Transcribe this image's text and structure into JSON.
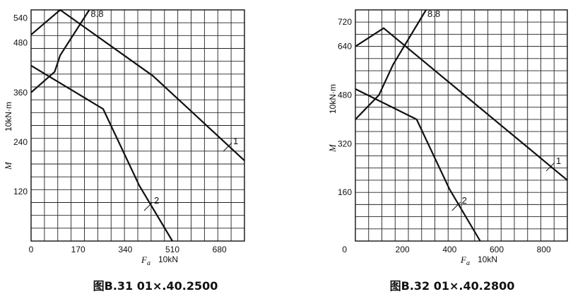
{
  "chart_data": [
    {
      "type": "line",
      "caption": "图B.31   01×.40.2500",
      "xlabel": "F",
      "xlabel_sub": "a",
      "xunit": "10kN",
      "ylabel": "M",
      "yunit": "10kN·m",
      "xlim": [
        0,
        770
      ],
      "ylim": [
        0,
        560
      ],
      "xticks": [
        0,
        170,
        340,
        510,
        680
      ],
      "yticks": [
        120,
        240,
        360,
        480,
        540
      ],
      "grid": true,
      "series": [
        {
          "name": "8.8",
          "x": [
            0,
            85,
            105,
            210
          ],
          "y": [
            360,
            410,
            450,
            560
          ]
        },
        {
          "name": "1",
          "x": [
            0,
            105,
            440,
            770
          ],
          "y": [
            500,
            560,
            400,
            195
          ]
        },
        {
          "name": "2",
          "x": [
            0,
            260,
            390,
            510
          ],
          "y": [
            425,
            320,
            135,
            0
          ]
        }
      ]
    },
    {
      "type": "line",
      "caption": "图B.32   01×.40.2800",
      "xlabel": "F",
      "xlabel_sub": "a",
      "xunit": "10kN",
      "ylabel": "M",
      "yunit": "10kN·m",
      "xlim": [
        0,
        900
      ],
      "ylim": [
        0,
        760
      ],
      "xticks": [
        200,
        400,
        600,
        800
      ],
      "yticks": [
        160,
        320,
        480,
        640,
        720
      ],
      "yzero_label": "0",
      "grid": true,
      "series": [
        {
          "name": "8.8",
          "x": [
            0,
            100,
            160,
            300
          ],
          "y": [
            400,
            480,
            580,
            760
          ]
        },
        {
          "name": "1",
          "x": [
            0,
            120,
            900
          ],
          "y": [
            640,
            700,
            200
          ]
        },
        {
          "name": "2",
          "x": [
            0,
            260,
            400,
            530
          ],
          "y": [
            500,
            400,
            170,
            0
          ]
        }
      ]
    }
  ]
}
